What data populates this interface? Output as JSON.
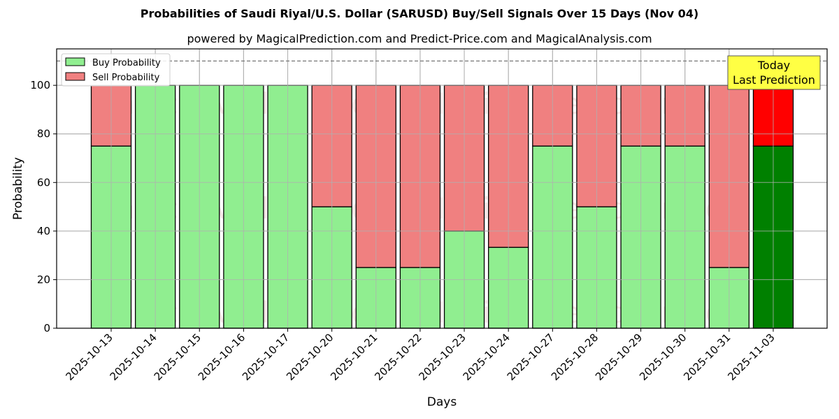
{
  "header": {
    "title": "Probabilities of Saudi Riyal/U.S. Dollar (SARUSD) Buy/Sell Signals Over 15 Days (Nov 04)",
    "subtitle": "powered by MagicalPrediction.com and Predict-Price.com and MagicalAnalysis.com"
  },
  "legend": {
    "buy_label": "Buy Probability",
    "sell_label": "Sell Probability"
  },
  "annotation": {
    "line1": "Today",
    "line2": "Last Prediction"
  },
  "colors": {
    "buy": "#90ee90",
    "sell": "#f08080",
    "today_buy": "#008000",
    "today_sell": "#ff0000",
    "annotation_bg": "#ffff44"
  },
  "chart_data": {
    "type": "bar",
    "stacked": true,
    "title": "Probabilities of Saudi Riyal/U.S. Dollar (SARUSD) Buy/Sell Signals Over 15 Days (Nov 04)",
    "subtitle": "powered by MagicalPrediction.com and Predict-Price.com and MagicalAnalysis.com",
    "xlabel": "Days",
    "ylabel": "Probability",
    "ylim": [
      0,
      115
    ],
    "yticks": [
      0,
      20,
      40,
      60,
      80,
      100
    ],
    "reference_line": 110,
    "grid": true,
    "legend_position": "upper left",
    "categories": [
      "2025-10-13",
      "2025-10-14",
      "2025-10-15",
      "2025-10-16",
      "2025-10-17",
      "2025-10-20",
      "2025-10-21",
      "2025-10-22",
      "2025-10-23",
      "2025-10-24",
      "2025-10-27",
      "2025-10-28",
      "2025-10-29",
      "2025-10-30",
      "2025-10-31",
      "2025-11-03"
    ],
    "series": [
      {
        "name": "Buy Probability",
        "values": [
          75,
          100,
          100,
          100,
          100,
          50,
          25,
          25,
          40,
          33.3,
          75,
          50,
          75,
          75,
          25,
          75
        ]
      },
      {
        "name": "Sell Probability",
        "values": [
          25,
          0,
          0,
          0,
          0,
          50,
          75,
          75,
          60,
          66.7,
          25,
          50,
          25,
          25,
          75,
          25
        ]
      }
    ],
    "annotations": [
      "Today\nLast Prediction"
    ],
    "watermarks": [
      "MagicalAnalysis.com",
      "MagicalPrediction.com"
    ]
  }
}
